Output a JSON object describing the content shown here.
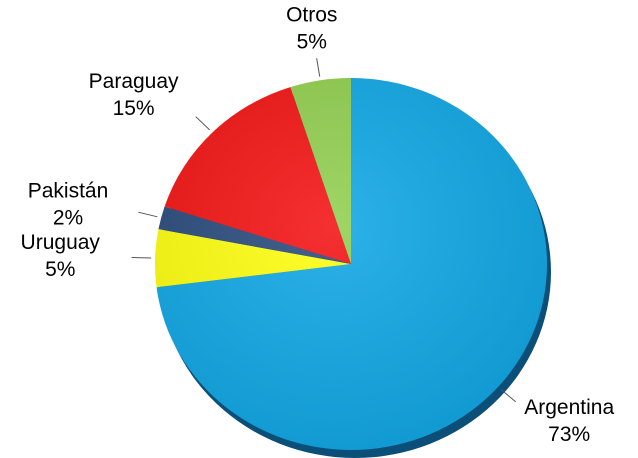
{
  "chart_data": {
    "type": "pie",
    "categories": [
      "Argentina",
      "Uruguay",
      "Pakistán",
      "Paraguay",
      "Otros"
    ],
    "values": [
      73,
      5,
      2,
      15,
      5
    ],
    "value_labels": [
      "73%",
      "5%",
      "2%",
      "15%",
      "5%"
    ],
    "colors": [
      "#10a8e6",
      "#ffff10",
      "#2b4c7e",
      "#f41414",
      "#92d050"
    ]
  }
}
